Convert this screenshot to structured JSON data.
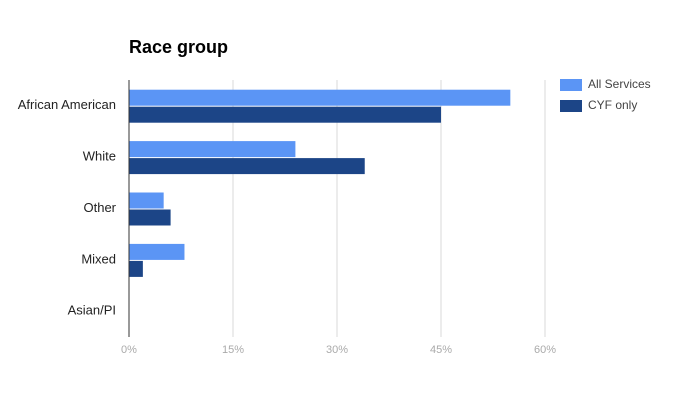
{
  "chart_data": {
    "type": "hbar",
    "title": "Race group",
    "categories": [
      "African American",
      "White",
      "Other",
      "Mixed",
      "Asian/PI"
    ],
    "series": [
      {
        "name": "All Services",
        "color": "#5b95f5",
        "values": [
          55,
          24,
          5,
          8,
          0
        ]
      },
      {
        "name": "CYF only",
        "color": "#1c4587",
        "values": [
          45,
          34,
          6,
          2,
          0
        ]
      }
    ],
    "xlim": [
      0,
      60
    ],
    "xticks": [
      {
        "value": 0,
        "label": "0%"
      },
      {
        "value": 15,
        "label": "15%"
      },
      {
        "value": 30,
        "label": "30%"
      },
      {
        "value": 45,
        "label": "45%"
      },
      {
        "value": 60,
        "label": "60%"
      }
    ],
    "grid": true,
    "legend": "right"
  }
}
